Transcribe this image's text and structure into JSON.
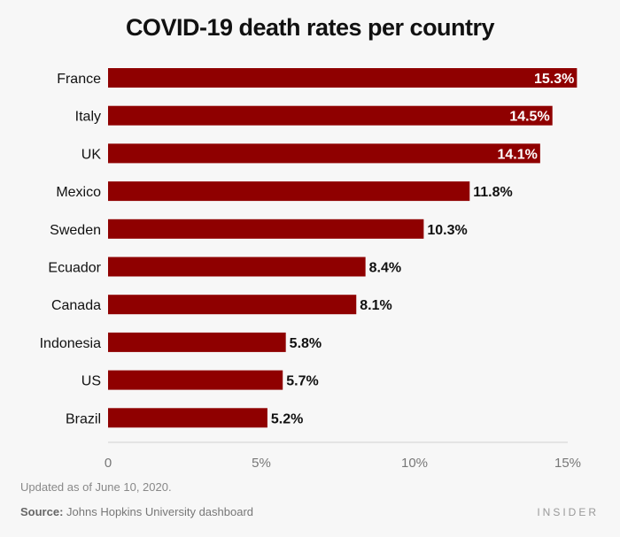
{
  "chart_data": {
    "type": "bar",
    "orientation": "horizontal",
    "title": "COVID-19 death rates per country",
    "categories": [
      "France",
      "Italy",
      "UK",
      "Mexico",
      "Sweden",
      "Ecuador",
      "Canada",
      "Indonesia",
      "US",
      "Brazil"
    ],
    "values": [
      15.3,
      14.5,
      14.1,
      11.8,
      10.3,
      8.4,
      8.1,
      5.8,
      5.7,
      5.2
    ],
    "data_labels": [
      "15.3%",
      "14.5%",
      "14.1%",
      "11.8%",
      "10.3%",
      "8.4%",
      "8.1%",
      "5.8%",
      "5.7%",
      "5.2%"
    ],
    "xticks": [
      0,
      5,
      10,
      15
    ],
    "xtick_labels": [
      "0",
      "5%",
      "10%",
      "15%"
    ],
    "xlim": [
      0,
      15.3
    ],
    "grid": false,
    "colors": {
      "bar": "#8f0000",
      "background": "#f7f7f7"
    }
  },
  "footer": {
    "note": "Updated as of June 10, 2020.",
    "source_label": "Source:",
    "source_text": " Johns Hopkins University dashboard",
    "logo": "INSIDER"
  }
}
